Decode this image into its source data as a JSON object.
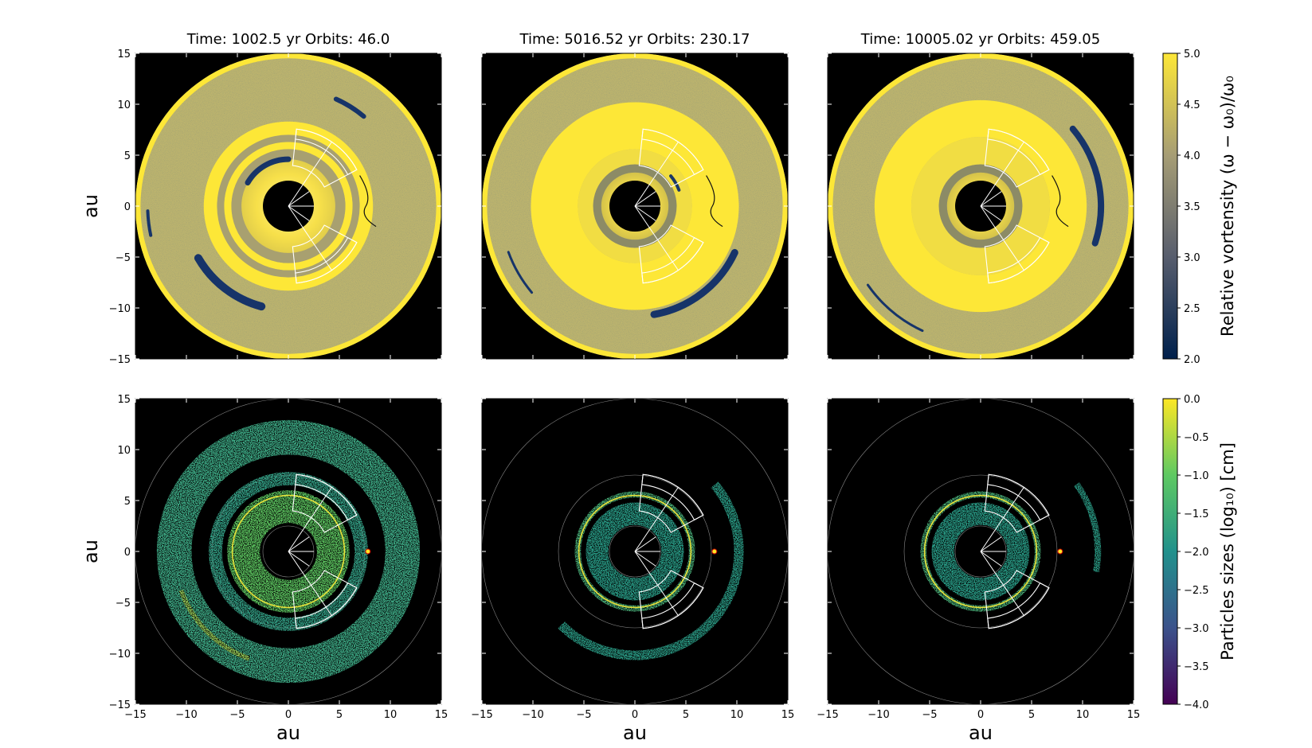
{
  "figure": {
    "axis_label": "au",
    "colorbar_top": {
      "label": "Relative vortensity (ω − ω₀)/ω₀",
      "ticks": [
        "2.0",
        "2.5",
        "3.0",
        "3.5",
        "4.0",
        "4.5",
        "5.0"
      ],
      "range": [
        2.0,
        5.0
      ],
      "colors": [
        "#00204c",
        "#575d6d",
        "#a69d75",
        "#fde737"
      ]
    },
    "colorbar_bottom": {
      "label": "Particles sizes (log₁₀) [cm]",
      "ticks": [
        "−4.0",
        "−3.5",
        "−3.0",
        "−2.5",
        "−2.0",
        "−1.5",
        "−1.0",
        "−0.5",
        "0.0"
      ],
      "range": [
        -4.0,
        0.0
      ],
      "colors": [
        "#440154",
        "#3b528b",
        "#21918c",
        "#5ec962",
        "#fde725"
      ]
    },
    "x_ticks": [
      "−15",
      "−10",
      "−5",
      "0",
      "5",
      "10",
      "15"
    ],
    "y_ticks": [
      "15",
      "10",
      "5",
      "0",
      "−5",
      "−10",
      "−15"
    ]
  },
  "chart_data": [
    {
      "type": "heatmap",
      "panel": "vortensity-1",
      "title": "Time: 1002.5 yr  Orbits: 46.0",
      "time_yr": 1002.5,
      "orbits": 46.0,
      "xlabel": "",
      "ylabel": "au",
      "xlim": [
        -15,
        15
      ],
      "ylim": [
        -15,
        15
      ]
    },
    {
      "type": "heatmap",
      "panel": "vortensity-2",
      "title": "Time: 5016.52 yr  Orbits: 230.17",
      "time_yr": 5016.52,
      "orbits": 230.17,
      "xlabel": "",
      "ylabel": "",
      "xlim": [
        -15,
        15
      ],
      "ylim": [
        -15,
        15
      ]
    },
    {
      "type": "heatmap",
      "panel": "vortensity-3",
      "title": "Time: 10005.02 yr  Orbits: 459.05",
      "time_yr": 10005.02,
      "orbits": 459.05,
      "xlabel": "",
      "ylabel": "",
      "xlim": [
        -15,
        15
      ],
      "ylim": [
        -15,
        15
      ]
    },
    {
      "type": "scatter",
      "panel": "particles-1",
      "xlabel": "au",
      "ylabel": "au",
      "xlim": [
        -15,
        15
      ],
      "ylim": [
        -15,
        15
      ]
    },
    {
      "type": "scatter",
      "panel": "particles-2",
      "xlabel": "au",
      "ylabel": "",
      "xlim": [
        -15,
        15
      ],
      "ylim": [
        -15,
        15
      ]
    },
    {
      "type": "scatter",
      "panel": "particles-3",
      "xlabel": "au",
      "ylabel": "",
      "xlim": [
        -15,
        15
      ],
      "ylim": [
        -15,
        15
      ]
    }
  ]
}
